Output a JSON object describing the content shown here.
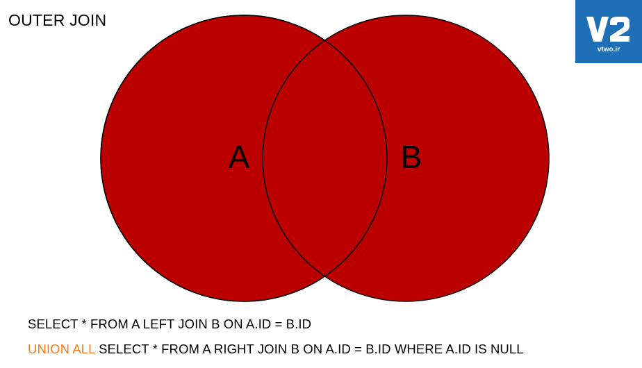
{
  "title": "OUTER JOIN",
  "logo": {
    "mark": "V2",
    "site": "vtwo.ir",
    "background_color": "#1f6fb6"
  },
  "diagram": {
    "type": "venn",
    "fill_color": "#bb0000",
    "outline_color": "#000000",
    "sets": [
      {
        "label": "A",
        "highlighted": true
      },
      {
        "label": "B",
        "highlighted": true
      }
    ],
    "intersection_highlighted": true
  },
  "sql": {
    "line1": "SELECT * FROM A LEFT JOIN B ON A.ID = B.ID",
    "line2_keyword": "UNION ALL",
    "line2_rest": " SELECT * FROM A RIGHT JOIN B ON A.ID = B.ID WHERE A.ID IS NULL",
    "keyword_color": "#f07e1e"
  }
}
